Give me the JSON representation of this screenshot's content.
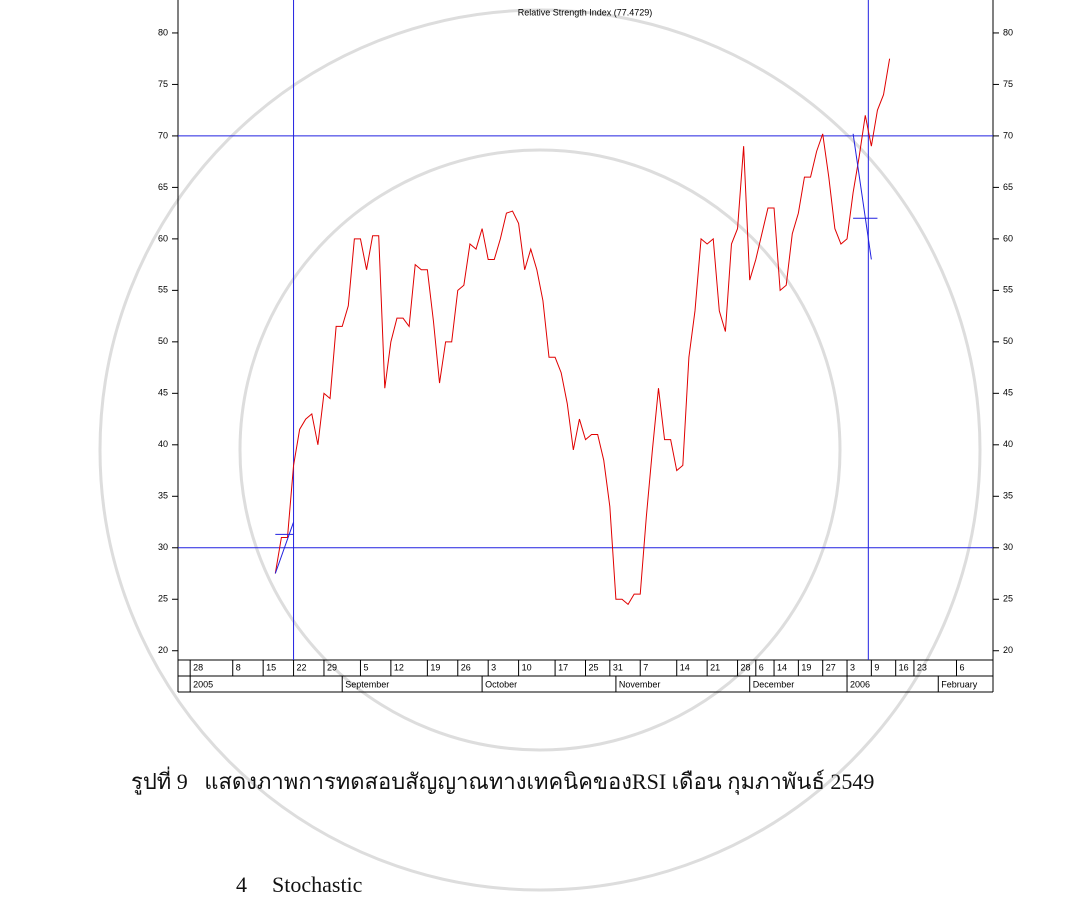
{
  "chart_data": {
    "type": "line",
    "title": "Relative Strength Index (77.4729)",
    "xlim": [
      0,
      134
    ],
    "ylim": [
      19.1,
      83.2
    ],
    "yticks": [
      20,
      25,
      30,
      35,
      40,
      45,
      50,
      55,
      60,
      65,
      70,
      75,
      80
    ],
    "xticks": [
      {
        "value": 2,
        "label": "28"
      },
      {
        "value": 9,
        "label": "8"
      },
      {
        "value": 14,
        "label": "15"
      },
      {
        "value": 19,
        "label": "22"
      },
      {
        "value": 24,
        "label": "29"
      },
      {
        "value": 30,
        "label": "5"
      },
      {
        "value": 35,
        "label": "12"
      },
      {
        "value": 41,
        "label": "19"
      },
      {
        "value": 46,
        "label": "26"
      },
      {
        "value": 51,
        "label": "3"
      },
      {
        "value": 56,
        "label": "10"
      },
      {
        "value": 62,
        "label": "17"
      },
      {
        "value": 67,
        "label": "25"
      },
      {
        "value": 71,
        "label": "31"
      },
      {
        "value": 76,
        "label": "7"
      },
      {
        "value": 82,
        "label": "14"
      },
      {
        "value": 87,
        "label": "21"
      },
      {
        "value": 92,
        "label": "28"
      },
      {
        "value": 95,
        "label": "6"
      },
      {
        "value": 98,
        "label": "14"
      },
      {
        "value": 102,
        "label": "19"
      },
      {
        "value": 106,
        "label": "27"
      },
      {
        "value": 110,
        "label": "3"
      },
      {
        "value": 114,
        "label": "9"
      },
      {
        "value": 118,
        "label": "16"
      },
      {
        "value": 121,
        "label": "23"
      },
      {
        "value": 128,
        "label": "6"
      }
    ],
    "period_ticks": [
      {
        "value": 2,
        "label": "2005"
      },
      {
        "value": 27,
        "label": "September"
      },
      {
        "value": 50,
        "label": "October"
      },
      {
        "value": 72,
        "label": "November"
      },
      {
        "value": 94,
        "label": "December"
      },
      {
        "value": 110,
        "label": "2006"
      },
      {
        "value": 125,
        "label": "February"
      }
    ],
    "series": [
      {
        "color": "#e00000",
        "values": [
          null,
          null,
          null,
          null,
          null,
          null,
          null,
          null,
          null,
          null,
          null,
          null,
          null,
          null,
          null,
          null,
          27.5,
          31,
          31,
          38,
          41.5,
          42.5,
          43,
          40,
          45,
          44.5,
          51.5,
          51.5,
          53.5,
          60,
          60,
          57,
          60.3,
          60.3,
          45.5,
          50,
          52.3,
          52.3,
          51.5,
          57.5,
          57,
          57,
          52,
          46,
          50,
          50,
          55,
          55.5,
          59.5,
          59,
          61,
          58,
          58,
          60,
          62.5,
          62.7,
          61.5,
          57,
          59,
          57,
          54,
          48.5,
          48.5,
          47,
          44,
          39.5,
          42.5,
          40.5,
          41,
          41,
          38.5,
          34,
          25,
          25,
          24.5,
          25.5,
          25.5,
          33,
          39.5,
          45.5,
          40.5,
          40.5,
          37.5,
          38,
          48.5,
          53,
          60,
          59.5,
          60,
          53,
          51,
          59.5,
          61,
          69,
          56,
          58,
          60.5,
          63,
          63,
          55,
          55.5,
          60.5,
          62.5,
          66,
          66,
          68.5,
          70.2,
          66,
          61,
          59.5,
          60,
          64.5,
          68,
          72,
          69,
          72.5,
          74,
          77.5
        ]
      }
    ],
    "hlines": [
      30,
      70
    ],
    "vlines": [
      19,
      113.5
    ],
    "ref_color": "#2020e0",
    "trend_lines": [
      {
        "x": [
          16,
          19
        ],
        "y": [
          27.5,
          32.5
        ]
      },
      {
        "x": [
          16,
          19
        ],
        "y": [
          31.3,
          31.3
        ]
      },
      {
        "x": [
          111,
          114
        ],
        "y": [
          70.2,
          58
        ]
      },
      {
        "x": [
          111,
          115
        ],
        "y": [
          62,
          62
        ]
      }
    ]
  },
  "document": {
    "caption": "รูปที่ 9   แสดงภาพการทดสอบสัญญาณทางเทคนิคของRSI เดือน กุมภาพันธ์ 2549",
    "section_number": "4",
    "section_title": "Stochastic"
  }
}
